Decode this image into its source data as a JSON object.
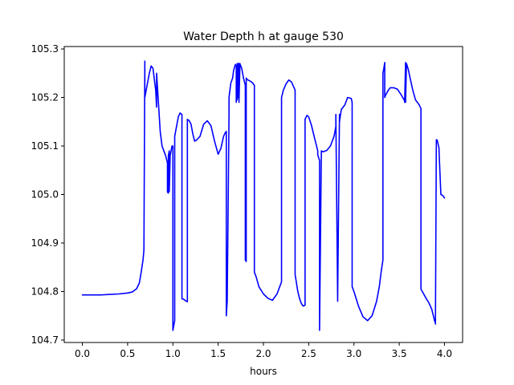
{
  "chart_data": {
    "type": "line",
    "title": "Water Depth h at gauge 530",
    "xlabel": "hours",
    "ylabel": "",
    "xlim": [
      -0.2,
      4.2
    ],
    "ylim": [
      104.695,
      105.305
    ],
    "xticks": [
      0.0,
      0.5,
      1.0,
      1.5,
      2.0,
      2.5,
      3.0,
      3.5,
      4.0
    ],
    "xtick_labels": [
      "0.0",
      "0.5",
      "1.0",
      "1.5",
      "2.0",
      "2.5",
      "3.0",
      "3.5",
      "4.0"
    ],
    "yticks": [
      104.7,
      104.8,
      104.9,
      105.0,
      105.1,
      105.2,
      105.3
    ],
    "ytick_labels": [
      "104.7",
      "104.8",
      "104.9",
      "105.0",
      "105.1",
      "105.2",
      "105.3"
    ],
    "grid": false,
    "series": [
      {
        "color": "#0000ff",
        "x": [
          0.0,
          0.1,
          0.2,
          0.3,
          0.4,
          0.5,
          0.55,
          0.6,
          0.63,
          0.65,
          0.67,
          0.68,
          0.69,
          0.69,
          0.7,
          0.72,
          0.74,
          0.76,
          0.78,
          0.8,
          0.81,
          0.82,
          0.82,
          0.83,
          0.84,
          0.85,
          0.86,
          0.88,
          0.9,
          0.92,
          0.94,
          0.94,
          0.95,
          0.95,
          0.96,
          0.96,
          0.97,
          0.98,
          0.99,
          1.0,
          1.0,
          1.02,
          1.02,
          1.04,
          1.06,
          1.08,
          1.1,
          1.1,
          1.12,
          1.14,
          1.16,
          1.16,
          1.18,
          1.2,
          1.22,
          1.24,
          1.26,
          1.3,
          1.34,
          1.38,
          1.42,
          1.46,
          1.5,
          1.53,
          1.56,
          1.58,
          1.59,
          1.59,
          1.6,
          1.62,
          1.62,
          1.64,
          1.66,
          1.67,
          1.68,
          1.69,
          1.7,
          1.7,
          1.71,
          1.71,
          1.72,
          1.72,
          1.73,
          1.73,
          1.74,
          1.74,
          1.76,
          1.78,
          1.8,
          1.8,
          1.81,
          1.81,
          1.82,
          1.84,
          1.86,
          1.88,
          1.9,
          1.9,
          1.92,
          1.95,
          2.0,
          2.05,
          2.1,
          2.15,
          2.18,
          2.2,
          2.2,
          2.22,
          2.25,
          2.28,
          2.31,
          2.35,
          2.35,
          2.38,
          2.4,
          2.42,
          2.44,
          2.46,
          2.46,
          2.48,
          2.5,
          2.53,
          2.56,
          2.6,
          2.6,
          2.62,
          2.62,
          2.64,
          2.66,
          2.7,
          2.74,
          2.78,
          2.8,
          2.8,
          2.82,
          2.82,
          2.84,
          2.84,
          2.86,
          2.88,
          2.9,
          2.93,
          2.97,
          2.98,
          2.98,
          3.0,
          3.05,
          3.1,
          3.15,
          3.2,
          3.25,
          3.28,
          3.3,
          3.32,
          3.32,
          3.33,
          3.34,
          3.34,
          3.35,
          3.38,
          3.4,
          3.44,
          3.48,
          3.52,
          3.56,
          3.56,
          3.57,
          3.57,
          3.58,
          3.6,
          3.62,
          3.65,
          3.68,
          3.7,
          3.72,
          3.74,
          3.74,
          3.77,
          3.8,
          3.83,
          3.86,
          3.88,
          3.89,
          3.9,
          3.9,
          3.91,
          3.92,
          3.94,
          3.94,
          3.96,
          3.98,
          4.0
        ],
        "y": [
          104.793,
          104.793,
          104.793,
          104.794,
          104.795,
          104.797,
          104.799,
          104.806,
          104.818,
          104.84,
          104.865,
          104.885,
          105.275,
          105.2,
          105.21,
          105.23,
          105.25,
          105.265,
          105.26,
          105.23,
          105.215,
          105.18,
          105.25,
          105.22,
          105.19,
          105.16,
          105.13,
          105.1,
          105.09,
          105.08,
          105.065,
          105.005,
          105.003,
          105.08,
          105.09,
          105.006,
          105.08,
          105.09,
          105.1,
          105.1,
          104.72,
          104.74,
          105.12,
          105.14,
          105.16,
          105.168,
          105.165,
          104.785,
          104.784,
          104.781,
          104.779,
          105.155,
          105.152,
          105.145,
          105.125,
          105.11,
          105.112,
          105.12,
          105.145,
          105.152,
          105.142,
          105.11,
          105.083,
          105.095,
          105.12,
          105.128,
          105.13,
          104.75,
          104.78,
          105.165,
          105.2,
          105.23,
          105.24,
          105.255,
          105.262,
          105.268,
          105.265,
          105.19,
          105.27,
          105.195,
          105.27,
          105.2,
          105.27,
          105.19,
          105.265,
          105.27,
          105.26,
          105.24,
          105.225,
          104.865,
          104.862,
          105.24,
          105.237,
          105.235,
          105.233,
          105.23,
          105.225,
          104.84,
          104.83,
          104.81,
          104.795,
          104.786,
          104.782,
          104.795,
          104.81,
          104.82,
          105.2,
          105.215,
          105.228,
          105.236,
          105.232,
          105.215,
          104.835,
          104.8,
          104.785,
          104.775,
          104.77,
          104.772,
          105.155,
          105.163,
          105.16,
          105.143,
          105.12,
          105.09,
          105.082,
          105.07,
          104.72,
          105.09,
          105.088,
          105.091,
          105.1,
          105.12,
          105.14,
          105.165,
          104.78,
          104.785,
          105.165,
          105.15,
          105.175,
          105.18,
          105.185,
          105.2,
          105.198,
          105.19,
          104.81,
          104.8,
          104.77,
          104.748,
          104.74,
          104.75,
          104.78,
          104.81,
          104.84,
          104.865,
          105.25,
          105.26,
          105.272,
          105.2,
          105.205,
          105.215,
          105.22,
          105.22,
          105.217,
          105.206,
          105.193,
          105.19,
          105.272,
          105.19,
          105.27,
          105.258,
          105.24,
          105.215,
          105.195,
          105.19,
          105.185,
          105.177,
          104.805,
          104.795,
          104.785,
          104.776,
          104.763,
          104.748,
          104.74,
          104.735,
          104.733,
          105.113,
          105.112,
          105.095,
          105.088,
          105.0,
          104.998,
          104.993
        ]
      }
    ]
  }
}
